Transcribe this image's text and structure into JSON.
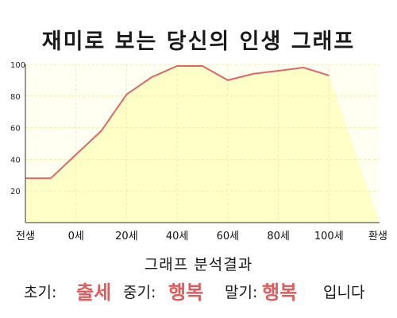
{
  "title": "재미로 보는 당신의 인생 그래프",
  "analysis": {
    "heading": "그래프 분석결과",
    "early_label": "초기:",
    "early_value": "출세",
    "middle_label": "중기:",
    "middle_value": "행복",
    "late_label": "말기:",
    "late_value": "행복",
    "ending": "입니다"
  },
  "colors": {
    "line": "#e06666",
    "fill": "#ffffc8",
    "plot_bg": "#fffff2",
    "grid": "#ececa8",
    "highlight": "#e05c5c"
  },
  "chart_data": {
    "type": "area",
    "title": "재미로 보는 당신의 인생 그래프",
    "x_tick_labels": [
      "전생",
      "0세",
      "20세",
      "40세",
      "60세",
      "80세",
      "100세",
      "환생"
    ],
    "y_ticks": [
      20,
      40,
      60,
      80,
      100
    ],
    "ylim": [
      0,
      100
    ],
    "grid": true,
    "series": [
      {
        "x": [
          "전생",
          "0세",
          "10세",
          "20세",
          "30세",
          "40세",
          "50세",
          "60세",
          "70세",
          "80세",
          "90세",
          "100세",
          "환생"
        ],
        "values": [
          28,
          28,
          43,
          58,
          81,
          92,
          99,
          99,
          90,
          94,
          96,
          98,
          93
        ]
      }
    ]
  }
}
